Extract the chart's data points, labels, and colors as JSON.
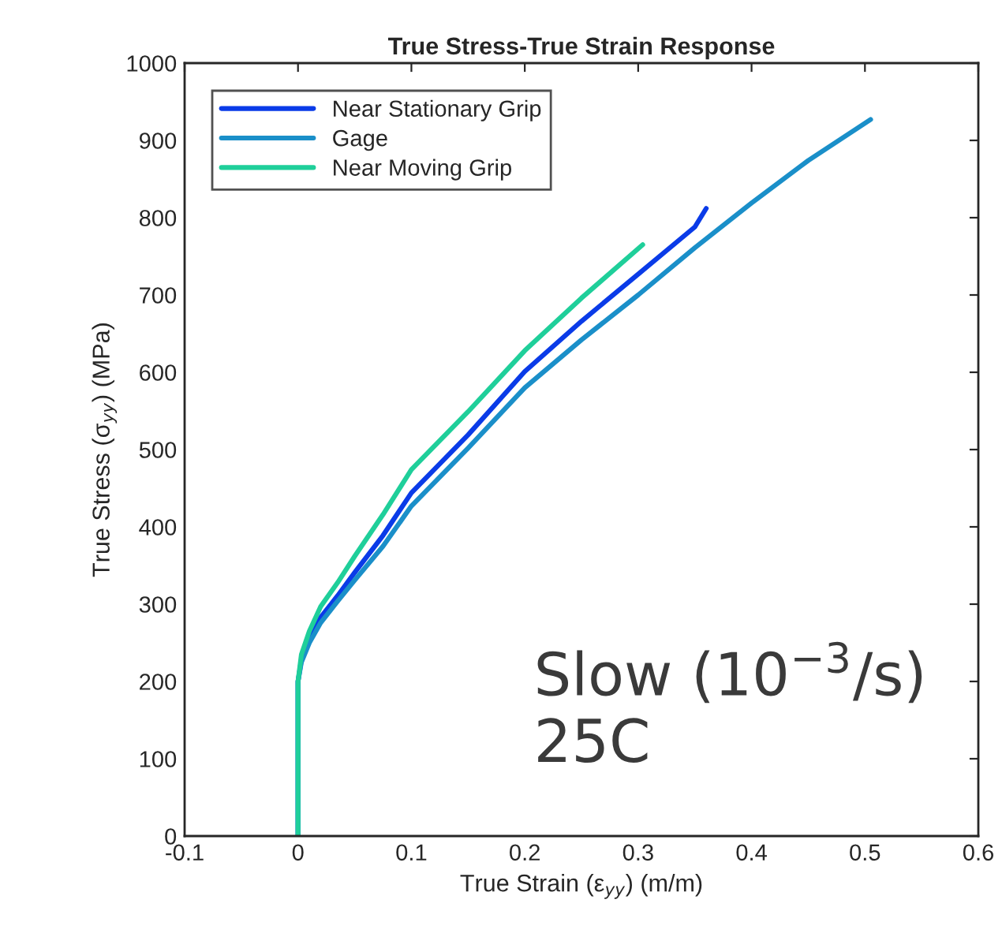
{
  "chart_data": {
    "type": "line",
    "title": "True Stress-True Strain Response",
    "xlabel": "True Strain (ε$_{yy}$) (m/m)",
    "ylabel": "True Stress (σ$_{yy}$) (MPa)",
    "xlim": [
      -0.1,
      0.6
    ],
    "xticks": [
      -0.1,
      0,
      0.1,
      0.2,
      0.3,
      0.4,
      0.5,
      0.6
    ],
    "ylim": [
      0,
      1000
    ],
    "yticks": [
      0,
      100,
      200,
      300,
      400,
      500,
      600,
      700,
      800,
      900,
      1000
    ],
    "grid": false,
    "legend": "top left",
    "line_style": "solid",
    "marker": "none",
    "annotations": [
      "Slow (10$^{−3}$/s)\n25C"
    ],
    "series": [
      {
        "name": "Near Stationary Grip",
        "color": "#0a3be8",
        "x": [
          0,
          0,
          0.003,
          0.01,
          0.02,
          0.035,
          0.05,
          0.075,
          0.1,
          0.15,
          0.2,
          0.25,
          0.3,
          0.35,
          0.36
        ],
        "values": [
          0,
          200,
          228,
          255,
          283,
          311,
          341,
          389,
          444,
          519,
          601,
          666,
          727,
          788,
          812
        ]
      },
      {
        "name": "Gage",
        "color": "#1a8fc9",
        "x": [
          0,
          0,
          0.003,
          0.01,
          0.02,
          0.035,
          0.05,
          0.075,
          0.1,
          0.15,
          0.2,
          0.25,
          0.3,
          0.35,
          0.4,
          0.45,
          0.505
        ],
        "values": [
          0,
          200,
          225,
          250,
          276,
          304,
          331,
          375,
          427,
          502,
          580,
          642,
          700,
          761,
          819,
          874,
          927
        ]
      },
      {
        "name": "Near Moving Grip",
        "color": "#1fcf9a",
        "x": [
          0,
          0,
          0.003,
          0.01,
          0.02,
          0.035,
          0.05,
          0.075,
          0.1,
          0.15,
          0.2,
          0.25,
          0.304
        ],
        "values": [
          0,
          200,
          235,
          265,
          297,
          328,
          362,
          416,
          474,
          549,
          628,
          696,
          765
        ]
      }
    ]
  }
}
